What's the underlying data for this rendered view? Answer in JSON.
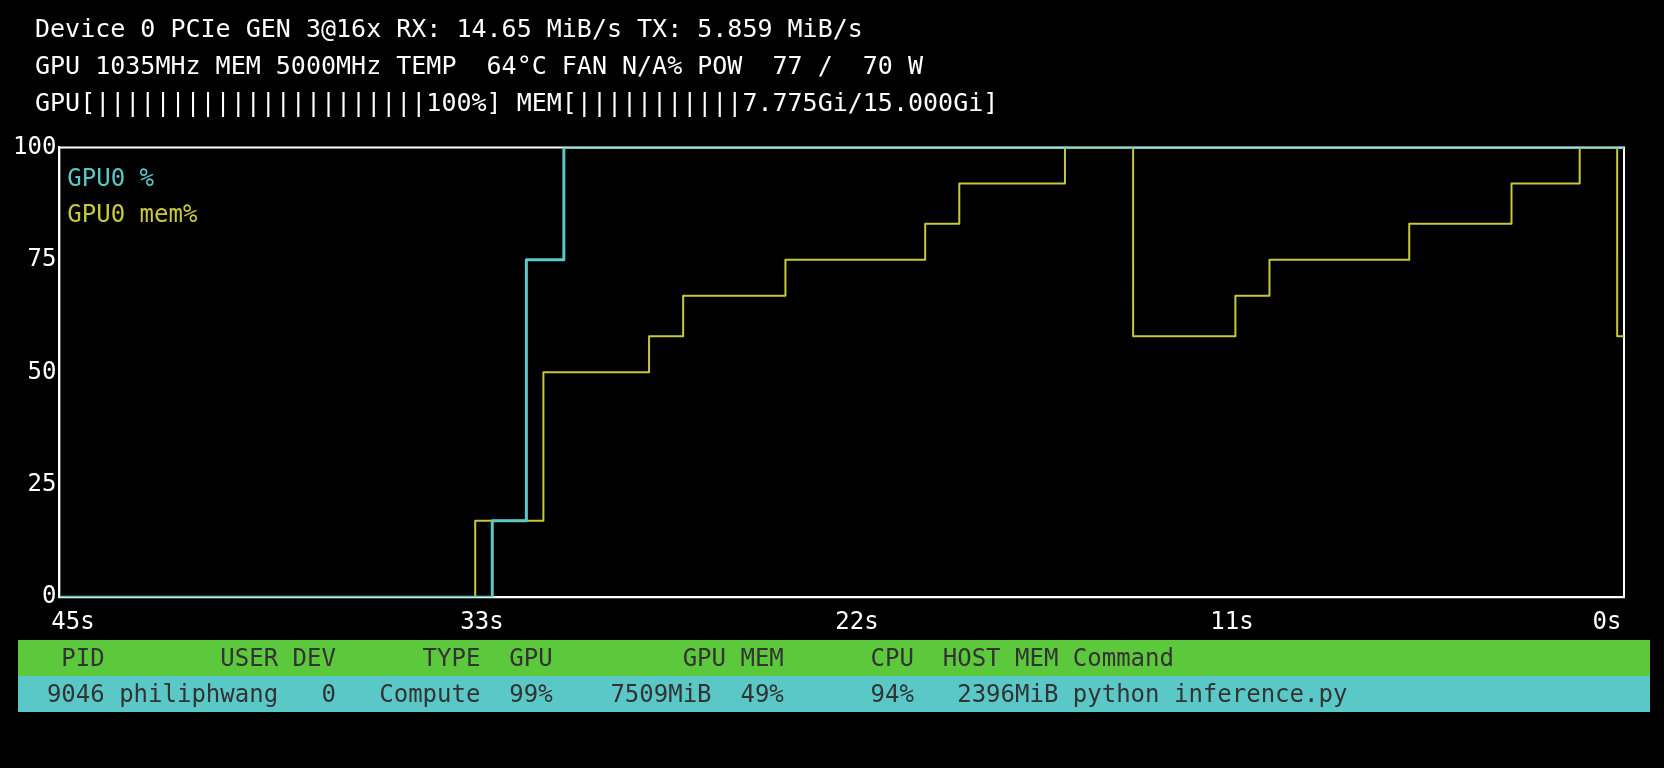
{
  "chart_data": {
    "type": "step",
    "annotations": [
      "Device 0 PCIe GEN 3@16x RX: 14.65 MiB/s TX: 5.859 MiB/s",
      "GPU 1035MHz MEM 5000MHz TEMP  64°C FAN N/A% POW  77 /  70 W",
      "GPU[||||||||||||||||||||||100%] MEM[|||||||||||7.775Gi/15.000Gi]",
      "   PID        USER DEV      TYPE  GPU         GPU MEM      CPU  HOST MEM Command",
      "  9046 philiphwang   0   Compute  99%    7509MiB  49%      94%   2396MiB python inference.py"
    ],
    "xlim": [
      45.4,
      -0.5
    ],
    "xticks": [
      {
        "value": 45,
        "label": "45s"
      },
      {
        "value": 33,
        "label": "33s"
      },
      {
        "value": 22,
        "label": "22s"
      },
      {
        "value": 11,
        "label": "11s"
      },
      {
        "value": 0,
        "label": "0s"
      }
    ],
    "ylim": [
      0,
      100
    ],
    "yticks": [
      0,
      25,
      50,
      75,
      100
    ],
    "grid": false,
    "legend": "top left",
    "marker": "none",
    "line_style": "solid",
    "series": [
      {
        "name": "GPU0 %",
        "color": "#5bc8c8",
        "x": [
          45.4,
          32.7,
          31.7,
          30.6,
          -0.5
        ],
        "values": [
          0,
          17,
          75,
          100,
          100
        ]
      },
      {
        "name": "GPU0 mem%",
        "color": "#c8c83c",
        "x": [
          45.4,
          33.2,
          31.2,
          28.1,
          27.1,
          24.1,
          20.0,
          19.0,
          15.9,
          13.9,
          10.9,
          9.9,
          5.8,
          2.8,
          0.8,
          -0.3,
          -0.5
        ],
        "values": [
          0,
          17,
          50,
          58,
          67,
          75,
          83,
          92,
          100,
          58,
          67,
          75,
          83,
          92,
          100,
          58,
          58
        ]
      }
    ]
  }
}
